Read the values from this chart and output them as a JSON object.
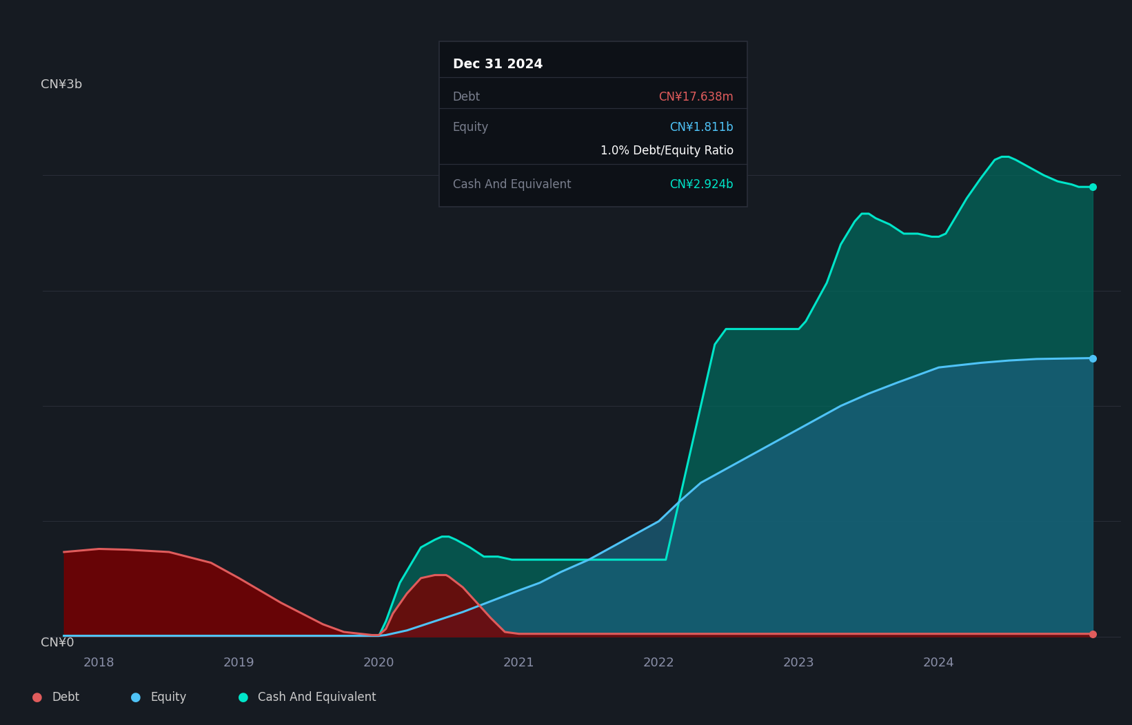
{
  "bg_color": "#161b22",
  "plot_bg_color": "#161b22",
  "grid_color": "#2a2e39",
  "ylabel_text": "CN¥3b",
  "ylabel_zero": "CN¥0",
  "x_ticks": [
    2018,
    2019,
    2020,
    2021,
    2022,
    2023,
    2024
  ],
  "xlim": [
    2017.6,
    2025.3
  ],
  "ylim": [
    -0.08,
    3.55
  ],
  "debt_color": "#e05c5c",
  "debt_fill_color": "#7a0000",
  "equity_color": "#4fc3f7",
  "equity_fill_color": "#1a5f7a",
  "cash_color": "#00e5c9",
  "cash_fill_color": "#006b5e",
  "tooltip_title": "Dec 31 2024",
  "tooltip_debt_label": "Debt",
  "tooltip_debt_value": "CN¥17.638m",
  "tooltip_equity_label": "Equity",
  "tooltip_equity_value": "CN¥1.811b",
  "tooltip_ratio": "1.0% Debt/Equity Ratio",
  "tooltip_cash_label": "Cash And Equivalent",
  "tooltip_cash_value": "CN¥2.924b",
  "legend_labels": [
    "Debt",
    "Equity",
    "Cash And Equivalent"
  ],
  "debt_x": [
    2017.75,
    2018.0,
    2018.2,
    2018.5,
    2018.8,
    2019.0,
    2019.3,
    2019.6,
    2019.75,
    2019.85,
    2019.95,
    2020.0,
    2020.05,
    2020.1,
    2020.2,
    2020.3,
    2020.4,
    2020.48,
    2020.5,
    2020.6,
    2020.7,
    2020.8,
    2020.9,
    2021.0,
    2021.5,
    2022.0,
    2022.5,
    2023.0,
    2023.5,
    2024.0,
    2024.5,
    2025.1
  ],
  "debt_y": [
    0.55,
    0.57,
    0.565,
    0.55,
    0.48,
    0.38,
    0.22,
    0.08,
    0.03,
    0.02,
    0.01,
    0.01,
    0.05,
    0.15,
    0.28,
    0.38,
    0.4,
    0.4,
    0.39,
    0.32,
    0.22,
    0.12,
    0.03,
    0.018,
    0.018,
    0.018,
    0.018,
    0.018,
    0.018,
    0.018,
    0.018,
    0.018
  ],
  "equity_x": [
    2017.75,
    2018.0,
    2018.5,
    2019.0,
    2019.5,
    2019.75,
    2019.95,
    2020.0,
    2020.05,
    2020.2,
    2020.4,
    2020.6,
    2020.8,
    2021.0,
    2021.15,
    2021.3,
    2021.5,
    2021.7,
    2022.0,
    2022.15,
    2022.3,
    2022.5,
    2022.7,
    2023.0,
    2023.3,
    2023.5,
    2023.7,
    2024.0,
    2024.3,
    2024.5,
    2024.7,
    2025.1
  ],
  "equity_y": [
    0.005,
    0.005,
    0.005,
    0.005,
    0.005,
    0.005,
    0.005,
    0.005,
    0.01,
    0.04,
    0.1,
    0.16,
    0.23,
    0.3,
    0.35,
    0.42,
    0.5,
    0.6,
    0.75,
    0.88,
    1.0,
    1.1,
    1.2,
    1.35,
    1.5,
    1.58,
    1.65,
    1.75,
    1.78,
    1.795,
    1.805,
    1.811
  ],
  "cash_x": [
    2017.75,
    2017.85,
    2019.9,
    2019.95,
    2020.0,
    2020.05,
    2020.15,
    2020.3,
    2020.4,
    2020.45,
    2020.5,
    2020.55,
    2020.65,
    2020.75,
    2020.85,
    2020.95,
    2021.0,
    2021.05,
    2021.15,
    2021.25,
    2021.4,
    2021.5,
    2021.55,
    2021.65,
    2021.75,
    2021.85,
    2021.95,
    2022.0,
    2022.05,
    2022.15,
    2022.3,
    2022.4,
    2022.48,
    2022.5,
    2022.55,
    2022.65,
    2022.75,
    2022.85,
    2022.95,
    2023.0,
    2023.05,
    2023.2,
    2023.3,
    2023.4,
    2023.45,
    2023.5,
    2023.55,
    2023.65,
    2023.75,
    2023.85,
    2023.95,
    2024.0,
    2024.05,
    2024.2,
    2024.3,
    2024.4,
    2024.45,
    2024.5,
    2024.55,
    2024.65,
    2024.75,
    2024.85,
    2024.95,
    2025.0,
    2025.1
  ],
  "cash_y": [
    0.005,
    0.005,
    0.005,
    0.005,
    0.005,
    0.1,
    0.35,
    0.58,
    0.63,
    0.65,
    0.65,
    0.63,
    0.58,
    0.52,
    0.52,
    0.5,
    0.5,
    0.5,
    0.5,
    0.5,
    0.5,
    0.5,
    0.5,
    0.5,
    0.5,
    0.5,
    0.5,
    0.5,
    0.5,
    0.9,
    1.5,
    1.9,
    2.0,
    2.0,
    2.0,
    2.0,
    2.0,
    2.0,
    2.0,
    2.0,
    2.05,
    2.3,
    2.55,
    2.7,
    2.75,
    2.75,
    2.72,
    2.68,
    2.62,
    2.62,
    2.6,
    2.6,
    2.62,
    2.85,
    2.98,
    3.1,
    3.12,
    3.12,
    3.1,
    3.05,
    3.0,
    2.96,
    2.94,
    2.924,
    2.924
  ]
}
